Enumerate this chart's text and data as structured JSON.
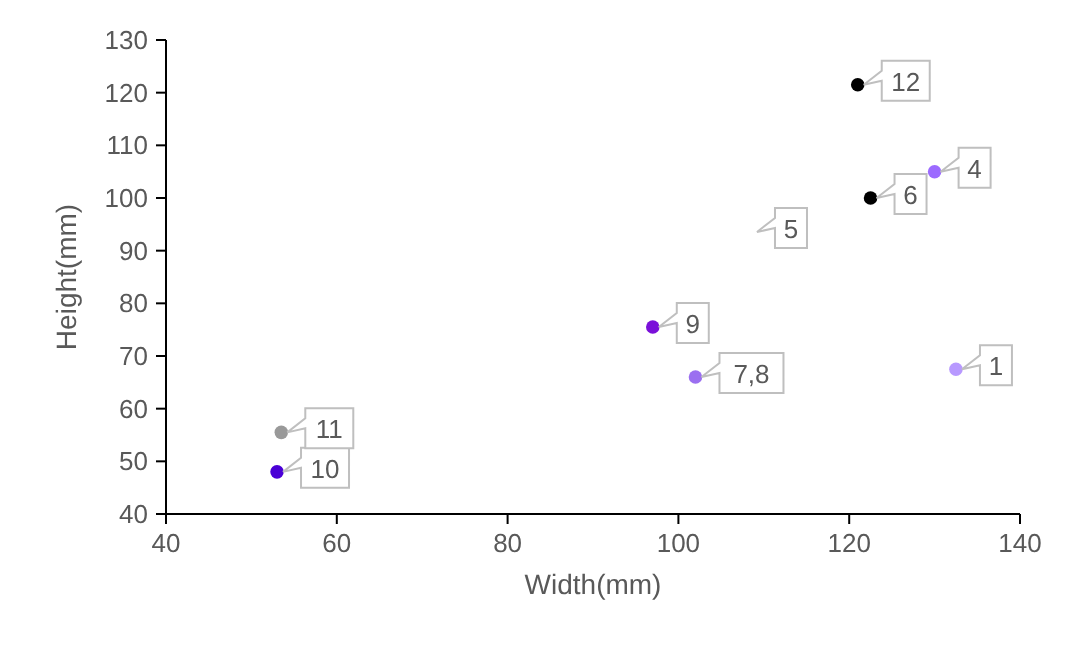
{
  "chart_data": {
    "type": "scatter",
    "xlabel": "Width(mm)",
    "ylabel": "Height(mm)",
    "x": [
      132.5,
      130,
      122.5,
      102,
      97,
      53,
      53.5,
      121
    ],
    "values": [
      67.5,
      105,
      100,
      66,
      75.5,
      48,
      55.5,
      121.5
    ],
    "colors": [
      "#b899ff",
      "#9c6bff",
      "#000000",
      "#9b6ff0",
      "#7a10d9",
      "#4a00d6",
      "#999999",
      "#000000"
    ],
    "annotations": [
      {
        "text": "1",
        "x": 132.5,
        "y": 67.5
      },
      {
        "text": "4",
        "x": 130,
        "y": 105
      },
      "5",
      {
        "text": "6",
        "x": 122.5,
        "y": 100
      },
      {
        "text": "7,8",
        "x": 102,
        "y": 66
      },
      {
        "text": "9",
        "x": 97,
        "y": 75.5
      },
      {
        "text": "10",
        "x": 53,
        "y": 48
      },
      {
        "text": "11",
        "x": 53.5,
        "y": 55.5
      },
      {
        "text": "12",
        "x": 121,
        "y": 121.5
      }
    ],
    "xlim": [
      40,
      140
    ],
    "xticks": [
      40,
      60,
      80,
      100,
      120,
      140
    ],
    "ylim": [
      40,
      130
    ],
    "yticks": [
      40,
      50,
      60,
      70,
      80,
      90,
      100,
      110,
      120,
      130
    ],
    "marker": "circle",
    "grid": false
  }
}
